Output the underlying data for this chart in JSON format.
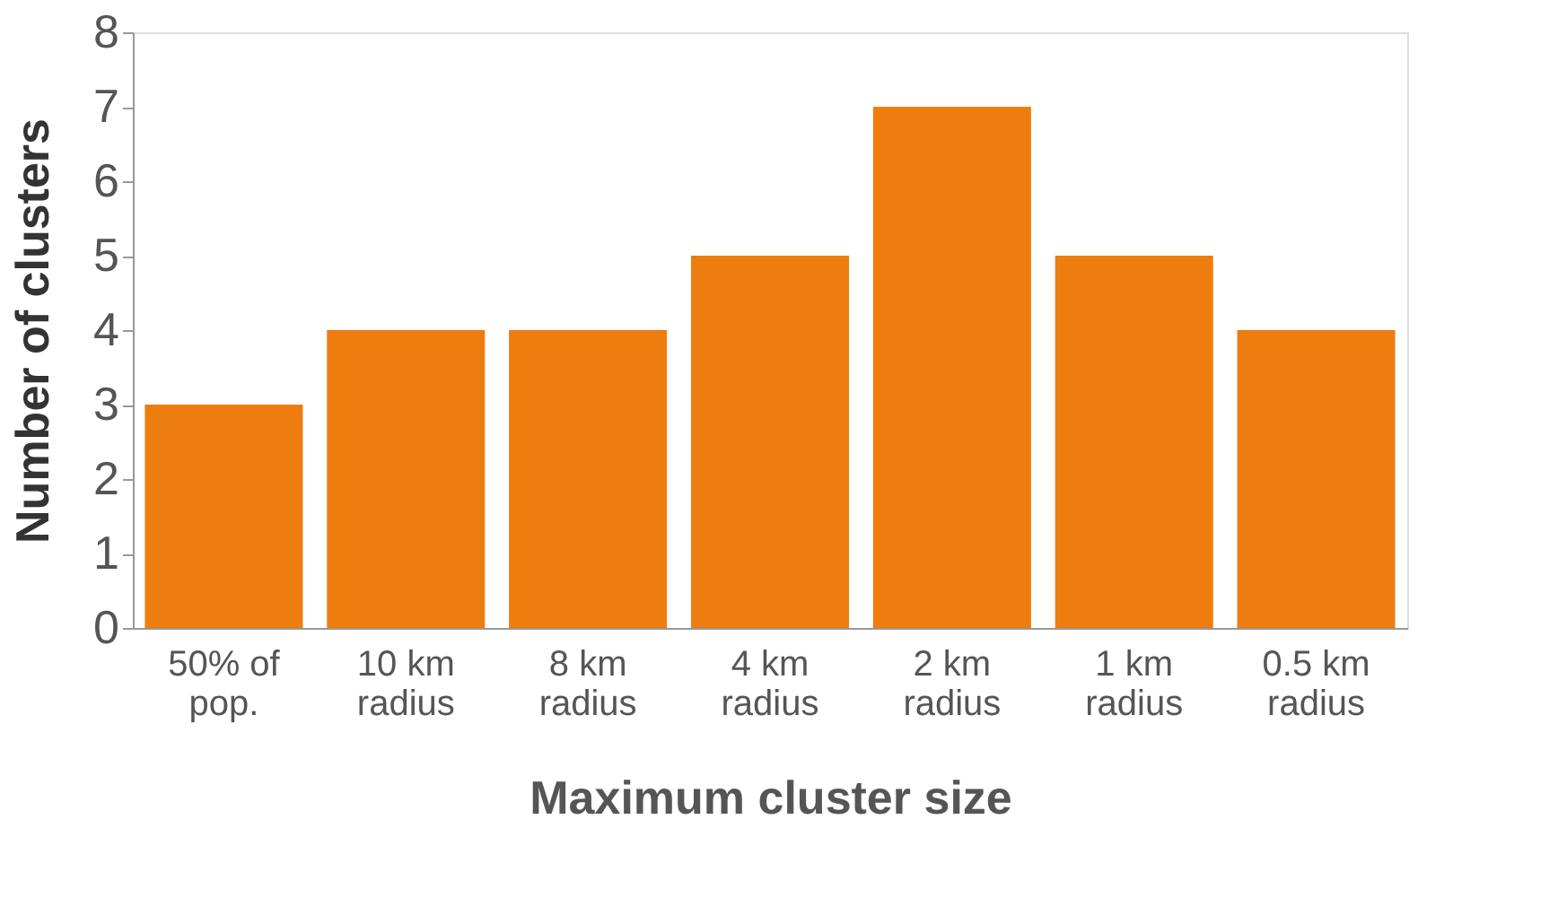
{
  "chart_data": {
    "type": "bar",
    "xlabel": "Maximum cluster size",
    "ylabel": "Number of clusters",
    "categories": [
      "50% of pop.",
      "10 km radius",
      "8 km radius",
      "4 km radius",
      "2 km radius",
      "1 km radius",
      "0.5 km radius"
    ],
    "values": [
      3,
      4,
      4,
      5,
      7,
      5,
      4
    ],
    "color": "#ed7d0e",
    "ylim": [
      0,
      8
    ],
    "yticks": [
      0,
      1,
      2,
      3,
      4,
      5,
      6,
      7,
      8
    ],
    "grid": false
  }
}
